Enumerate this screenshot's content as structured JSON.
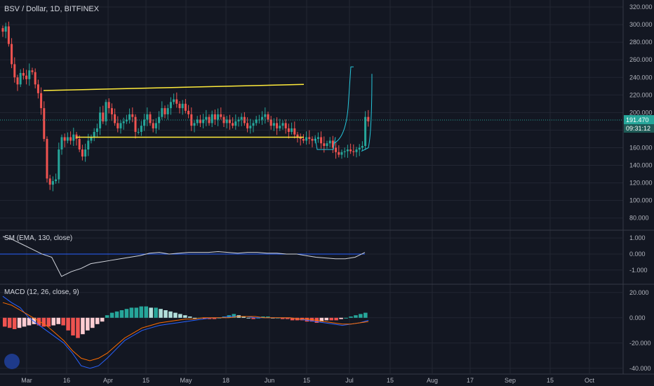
{
  "header": {
    "title": "BSV / Dollar, 1D, BITFINEX"
  },
  "indicators": {
    "sm_label": "SM (EMA, 130, close)",
    "macd_label": "MACD (12, 26, close, 9)"
  },
  "price_tag": {
    "value": "191.470",
    "timer": "09:31:12"
  },
  "colors": {
    "background": "#131722",
    "grid": "#232733",
    "up": "#26a69a",
    "down": "#ef5350",
    "trendline": "#ffeb3b",
    "annotation": "#26c6da",
    "text": "#b2b5be"
  },
  "chart_data": [
    {
      "type": "candlestick",
      "title": "BSV / Dollar, 1D, BITFINEX",
      "x_ticks": [
        "Mar",
        "16",
        "Apr",
        "15",
        "May",
        "18",
        "Jun",
        "15",
        "Jul",
        "15",
        "Aug",
        "17",
        "Sep",
        "15",
        "Oct"
      ],
      "y_ticks": [
        "80.000",
        "100.000",
        "120.000",
        "140.000",
        "160.000",
        "180.000",
        "200.000",
        "220.000",
        "240.000",
        "260.000",
        "280.000",
        "300.000",
        "320.000"
      ],
      "ylim": [
        67,
        328
      ],
      "last_price": 191.47,
      "close": [
        292,
        298,
        278,
        255,
        240,
        232,
        245,
        242,
        238,
        248,
        246,
        232,
        222,
        205,
        170,
        125,
        118,
        122,
        124,
        158,
        172,
        168,
        172,
        168,
        175,
        170,
        158,
        150,
        158,
        168,
        172,
        178,
        182,
        200,
        190,
        212,
        205,
        198,
        188,
        182,
        188,
        190,
        192,
        198,
        195,
        178,
        178,
        185,
        192,
        198,
        188,
        182,
        188,
        195,
        205,
        198,
        205,
        212,
        215,
        210,
        205,
        210,
        202,
        198,
        185,
        188,
        192,
        188,
        192,
        195,
        188,
        198,
        192,
        198,
        195,
        188,
        192,
        188,
        185,
        190,
        192,
        195,
        188,
        182,
        185,
        188,
        192,
        192,
        195,
        198,
        192,
        185,
        188,
        182,
        185,
        188,
        182,
        178,
        182,
        175,
        172,
        170,
        168,
        172,
        170,
        168,
        170,
        172,
        165,
        162,
        165,
        168,
        160,
        155,
        152,
        155,
        156,
        158,
        156,
        155,
        158,
        160,
        162,
        195,
        190
      ],
      "trendlines": [
        {
          "from": [
            "2019-03-12",
            225
          ],
          "to": [
            "2019-06-15",
            232
          ]
        },
        {
          "from": [
            "2019-03-20",
            172
          ],
          "to": [
            "2019-06-15",
            172
          ]
        }
      ]
    },
    {
      "type": "line",
      "title": "SM (EMA, 130, close)",
      "y_ticks": [
        "1.000",
        "0.000",
        "-1.000"
      ],
      "ylim": [
        -1.8,
        1.4
      ],
      "series": [
        {
          "values": [
            1.1,
            0.9,
            0.6,
            0.3,
            0.0,
            -0.2,
            -1.4,
            -1.1,
            -0.9,
            -0.6,
            -0.5,
            -0.4,
            -0.3,
            -0.2,
            -0.1,
            0.05,
            0.1,
            0.0,
            0.05,
            0.1,
            0.1,
            0.1,
            0.15,
            0.1,
            0.05,
            0.1,
            0.1,
            0.05,
            0.05,
            0.0,
            0.0,
            -0.1,
            -0.2,
            -0.25,
            -0.3,
            -0.3,
            -0.2,
            0.1
          ]
        }
      ],
      "baseline": 0.0
    },
    {
      "type": "bar",
      "title": "MACD (12, 26, close, 9)",
      "y_ticks": [
        "20.000",
        "0.000",
        "-20.000",
        "-40.000"
      ],
      "ylim": [
        -44,
        26
      ],
      "series": [
        {
          "values": [
            -7,
            -8,
            -9,
            -8,
            -7,
            -6,
            -5,
            -6,
            -7,
            -7,
            -6,
            -5,
            -6,
            -10,
            -14,
            -16,
            -13,
            -10,
            -8,
            -5,
            -3,
            2,
            4,
            5,
            6,
            7,
            8,
            8,
            9,
            9,
            8,
            8,
            7,
            6,
            5,
            4,
            3,
            2,
            1,
            0,
            0,
            -1,
            -1,
            -1,
            0,
            1,
            2,
            3,
            2,
            1,
            0,
            -1,
            0,
            1,
            1,
            0,
            0,
            -1,
            -1,
            -2,
            -2,
            -2,
            -3,
            -3,
            -4,
            -3,
            -2,
            -2,
            -2,
            -1,
            0,
            1,
            2,
            3,
            4
          ]
        },
        {
          "values": [
            17,
            12,
            8,
            0,
            -5,
            -10,
            -15,
            -20,
            -28,
            -38,
            -40,
            -38,
            -32,
            -25,
            -18,
            -14,
            -10,
            -8,
            -6,
            -5,
            -4,
            -3,
            -2,
            -1,
            0,
            0,
            1,
            1,
            1,
            0,
            0,
            0,
            0,
            0,
            -1,
            -2,
            -3,
            -4,
            -5,
            -6,
            -5,
            -4,
            -2
          ]
        },
        {
          "values": [
            12,
            10,
            6,
            2,
            -2,
            -6,
            -12,
            -18,
            -26,
            -32,
            -34,
            -32,
            -28,
            -22,
            -16,
            -12,
            -8,
            -6,
            -4,
            -3,
            -2,
            -1,
            -1,
            0,
            0,
            0,
            0,
            1,
            1,
            1,
            0,
            0,
            0,
            0,
            -1,
            -1,
            -2,
            -3,
            -4,
            -5,
            -5,
            -4,
            -3
          ]
        }
      ]
    }
  ]
}
